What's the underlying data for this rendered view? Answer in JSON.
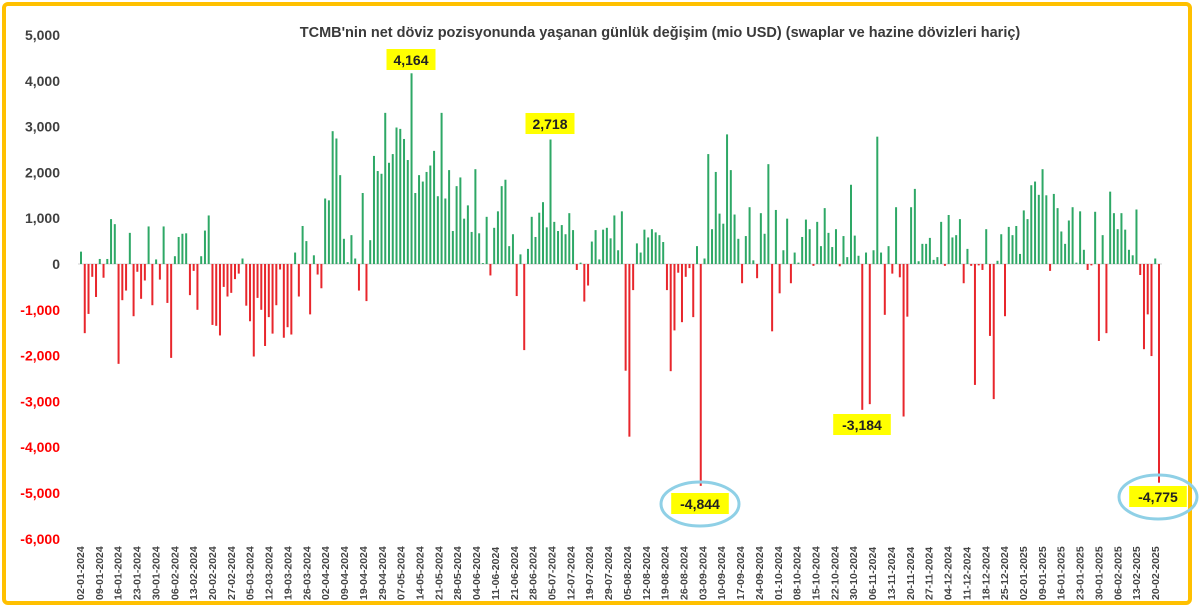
{
  "chart_data": {
    "type": "bar",
    "title": "TCMB'nin net döviz pozisyonunda yaşanan günlük değişim (mio USD) (swaplar ve hazine dövizleri hariç)",
    "xlabel": "",
    "ylabel": "",
    "ylim": [
      -6000,
      5000
    ],
    "y_ticks": [
      5000,
      4000,
      3000,
      2000,
      1000,
      0,
      -1000,
      -2000,
      -3000,
      -4000,
      -5000,
      -6000
    ],
    "y_tick_labels": [
      "5,000",
      "4,000",
      "3,000",
      "2,000",
      "1,000",
      "0",
      "-1,000",
      "-2,000",
      "-3,000",
      "-4,000",
      "-5,000",
      "-6,000"
    ],
    "x_tick_labels": [
      "02-01-2024",
      "09-01-2024",
      "16-01-2024",
      "23-01-2024",
      "30-01-2024",
      "06-02-2024",
      "13-02-2024",
      "20-02-2024",
      "27-02-2024",
      "05-03-2024",
      "12-03-2024",
      "19-03-2024",
      "26-03-2024",
      "02-04-2024",
      "09-04-2024",
      "19-04-2024",
      "29-04-2024",
      "07-05-2024",
      "14-05-2024",
      "21-05-2024",
      "28-05-2024",
      "04-06-2024",
      "11-06-2024",
      "21-06-2024",
      "28-06-2024",
      "05-07-2024",
      "12-07-2024",
      "19-07-2024",
      "29-07-2024",
      "05-08-2024",
      "12-08-2024",
      "19-08-2024",
      "26-08-2024",
      "03-09-2024",
      "10-09-2024",
      "17-09-2024",
      "24-09-2024",
      "01-10-2024",
      "08-10-2024",
      "15-10-2024",
      "22-10-2024",
      "30-10-2024",
      "06-11-2024",
      "13-11-2024",
      "20-11-2024",
      "27-11-2024",
      "04-12-2024",
      "11-12-2024",
      "18-12-2024",
      "25-12-2024",
      "02-01-2025",
      "09-01-2025",
      "16-01-2025",
      "23-01-2025",
      "30-01-2025",
      "06-02-2025",
      "13-02-2025",
      "20-02-2025"
    ],
    "values": [
      270,
      -1510,
      -1090,
      -280,
      -720,
      110,
      -300,
      110,
      980,
      870,
      -2180,
      -790,
      -580,
      680,
      -1140,
      -170,
      -760,
      -360,
      820,
      -900,
      100,
      -340,
      820,
      -850,
      -2050,
      170,
      590,
      660,
      670,
      -680,
      -150,
      -1000,
      170,
      730,
      1060,
      -1330,
      -1350,
      -1560,
      -500,
      -710,
      -630,
      -330,
      -210,
      120,
      -910,
      -1250,
      -2020,
      -740,
      -1000,
      -1790,
      -1160,
      -1520,
      -900,
      -120,
      -1610,
      -1380,
      -1540,
      250,
      -710,
      830,
      500,
      -1100,
      190,
      -230,
      -530,
      1430,
      1390,
      2900,
      2740,
      1940,
      550,
      40,
      630,
      120,
      -580,
      1550,
      -810,
      520,
      2360,
      2030,
      1970,
      3300,
      2210,
      2400,
      2980,
      2950,
      2730,
      2270,
      4164,
      1550,
      1940,
      1800,
      2010,
      2150,
      2470,
      1480,
      3300,
      1430,
      2050,
      720,
      1700,
      1890,
      990,
      1280,
      700,
      2070,
      670,
      20,
      1030,
      -250,
      790,
      1150,
      1700,
      1840,
      390,
      650,
      -700,
      210,
      -1880,
      330,
      1030,
      590,
      1120,
      1350,
      800,
      2718,
      920,
      720,
      850,
      650,
      1110,
      740,
      -130,
      30,
      -820,
      -470,
      490,
      740,
      100,
      750,
      790,
      560,
      1060,
      300,
      1150,
      -2330,
      -3770,
      -570,
      450,
      250,
      750,
      580,
      760,
      690,
      630,
      480,
      -570,
      -2340,
      -1450,
      -190,
      -1270,
      -280,
      -90,
      -1160,
      390,
      -4844,
      120,
      2400,
      760,
      2010,
      1100,
      880,
      2830,
      2050,
      1080,
      550,
      -420,
      610,
      1240,
      80,
      -310,
      1110,
      660,
      2180,
      -1470,
      1180,
      -640,
      300,
      990,
      -420,
      250,
      30,
      590,
      970,
      760,
      -40,
      920,
      390,
      1220,
      680,
      370,
      760,
      -50,
      610,
      150,
      1730,
      620,
      180,
      -3184,
      250,
      -3060,
      300,
      2780,
      250,
      -1110,
      390,
      -210,
      1240,
      -290,
      -3330,
      -1150,
      1240,
      1640,
      60,
      440,
      440,
      570,
      90,
      150,
      920,
      -40,
      1070,
      580,
      630,
      980,
      -420,
      330,
      -40,
      -2640,
      -30,
      -130,
      760,
      -1570,
      -2950,
      70,
      650,
      -1140,
      810,
      630,
      830,
      220,
      1170,
      980,
      1720,
      1800,
      1510,
      2070,
      1500,
      -150,
      1530,
      1220,
      710,
      440,
      950,
      1240,
      30,
      1150,
      310,
      -130,
      -30,
      1140,
      -1680,
      630,
      -1510,
      1580,
      1110,
      760,
      1110,
      750,
      310,
      190,
      1190,
      -240,
      -1860,
      -1100,
      -2010,
      120,
      -4775
    ],
    "annotations": [
      {
        "text": "4,164",
        "value": 4164,
        "circled": false
      },
      {
        "text": "2,718",
        "value": 2718,
        "circled": false
      },
      {
        "text": "-4,844",
        "value": -4844,
        "circled": true
      },
      {
        "text": "-3,184",
        "value": -3184,
        "circled": false
      },
      {
        "text": "-4,775",
        "value": -4775,
        "circled": true
      }
    ],
    "colors": {
      "positive": "#2EA866",
      "negative": "#E8262C",
      "negative_tick": "#FF0000",
      "highlight": "#FFFF00",
      "circle": "#8FD0E6",
      "frame": "#FFC000"
    }
  }
}
